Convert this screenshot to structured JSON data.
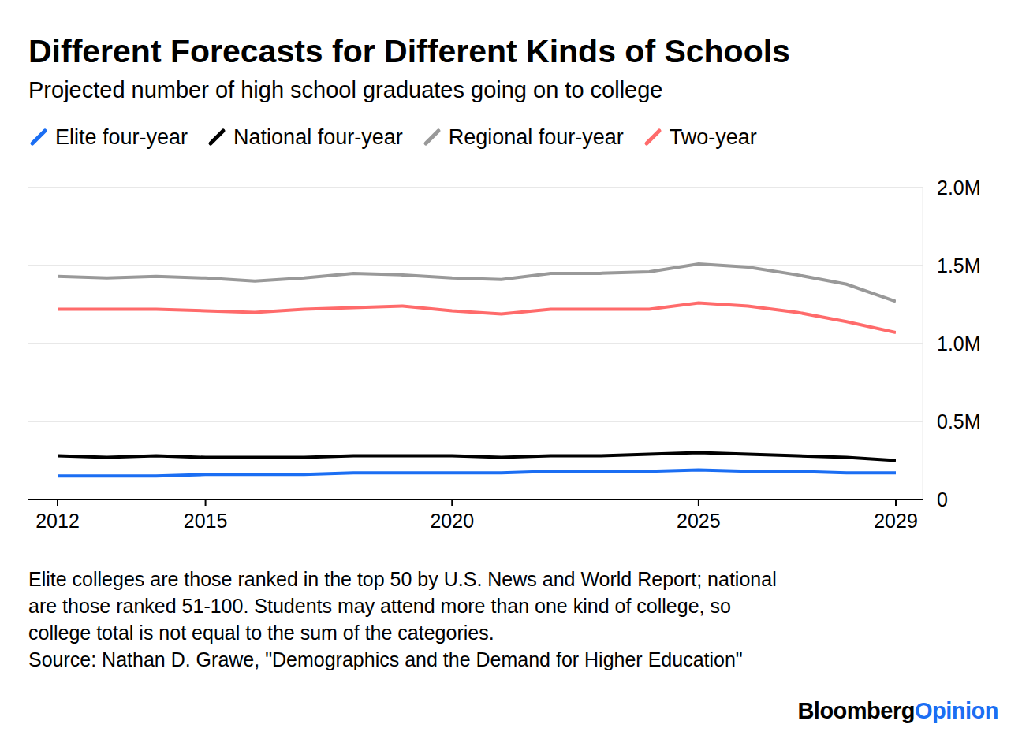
{
  "chart_data": {
    "type": "line",
    "title": "Different Forecasts for Different Kinds of Schools",
    "subtitle": "Projected number of high school graduates going on to college",
    "x": [
      2012,
      2013,
      2014,
      2015,
      2016,
      2017,
      2018,
      2019,
      2020,
      2021,
      2022,
      2023,
      2024,
      2025,
      2026,
      2027,
      2028,
      2029
    ],
    "series": [
      {
        "name": "Elite four-year",
        "color": "#1b6ef3",
        "values": [
          150000,
          150000,
          150000,
          160000,
          160000,
          160000,
          170000,
          170000,
          170000,
          170000,
          180000,
          180000,
          180000,
          190000,
          180000,
          180000,
          170000,
          170000
        ]
      },
      {
        "name": "National four-year",
        "color": "#000000",
        "values": [
          280000,
          270000,
          280000,
          270000,
          270000,
          270000,
          280000,
          280000,
          280000,
          270000,
          280000,
          280000,
          290000,
          300000,
          290000,
          280000,
          270000,
          250000
        ]
      },
      {
        "name": "Regional four-year",
        "color": "#999999",
        "values": [
          1430000,
          1420000,
          1430000,
          1420000,
          1400000,
          1420000,
          1450000,
          1440000,
          1420000,
          1410000,
          1450000,
          1450000,
          1460000,
          1510000,
          1490000,
          1440000,
          1380000,
          1270000
        ]
      },
      {
        "name": "Two-year",
        "color": "#ff6b6b",
        "values": [
          1220000,
          1220000,
          1220000,
          1210000,
          1200000,
          1220000,
          1230000,
          1240000,
          1210000,
          1190000,
          1220000,
          1220000,
          1220000,
          1260000,
          1240000,
          1200000,
          1140000,
          1070000
        ]
      }
    ],
    "xlim": [
      2012,
      2029
    ],
    "xticks": [
      2012,
      2015,
      2020,
      2025,
      2029
    ],
    "ylim": [
      0,
      2000000
    ],
    "yticks": [
      0,
      {
        "value": 500000,
        "label": "0.5M"
      },
      {
        "value": 1000000,
        "label": "1.0M"
      },
      {
        "value": 1500000,
        "label": "1.5M"
      },
      {
        "value": 2000000,
        "label": "2.0M"
      }
    ],
    "grid": true,
    "legend": "top-left",
    "note": "Elite colleges are those ranked in the top 50 by U.S. News and World Report; national are those ranked 51-100. Students may attend more than one kind of college, so college total is not equal to the sum of the categories.",
    "source": "Source: Nathan D. Grawe, \"Demographics and the Demand for Higher Education\"",
    "brand": [
      "Bloomberg",
      "Opinion"
    ]
  }
}
